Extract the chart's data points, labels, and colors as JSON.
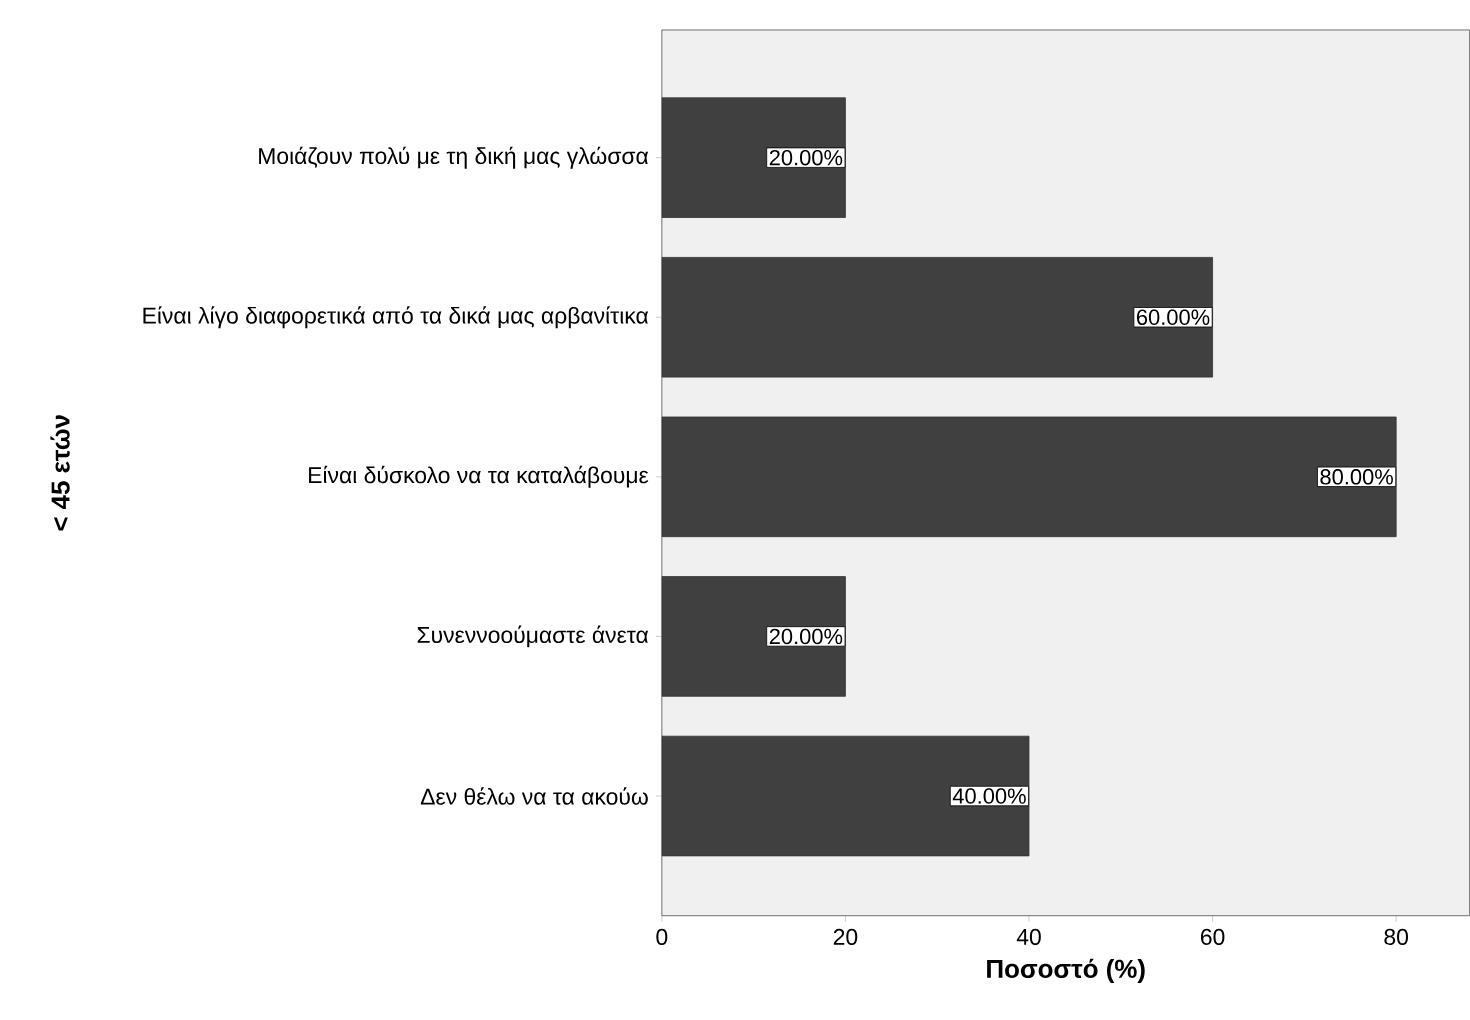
{
  "chart_data": {
    "type": "bar",
    "orientation": "horizontal",
    "ylabel": "< 45 ετών",
    "xlabel": "Ποσοστό (%)",
    "categories": [
      "Μοιάζουν πολύ με τη δική μας γλώσσα",
      "Είναι λίγο διαφορετικά από τα δικά μας αρβανίτικα",
      "Είναι δύσκολο να τα καταλάβουμε",
      "Συνεννοούμαστε άνετα",
      "Δεν θέλω να τα ακούω"
    ],
    "values": [
      20,
      60,
      80,
      20,
      40
    ],
    "value_labels": [
      "20.00%",
      "60.00%",
      "80.00%",
      "20.00%",
      "40.00%"
    ],
    "color": "#404040",
    "xlim": [
      0,
      88
    ],
    "xticks": [
      0,
      20,
      40,
      60,
      80
    ],
    "grid": false
  }
}
